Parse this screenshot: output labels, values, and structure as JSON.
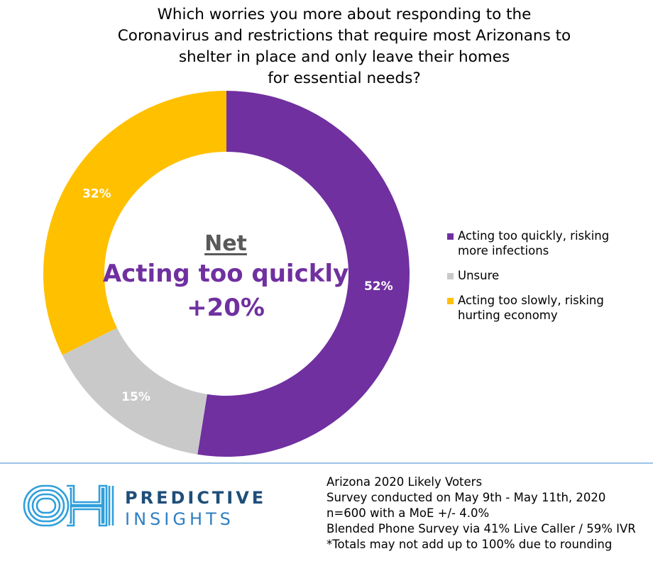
{
  "chart_data": {
    "type": "pie",
    "donut": true,
    "title_lines": [
      "Which worries you more about responding to the",
      "Coronavirus and restrictions that require most Arizonans to",
      "shelter in place and only leave their homes",
      "for essential needs?"
    ],
    "slices": [
      {
        "name": "Acting too quickly, risking more infections",
        "value": 52,
        "label": "52%",
        "color": "#7030a0"
      },
      {
        "name": "Unsure",
        "value": 15,
        "label": "15%",
        "color": "#c9c9c9"
      },
      {
        "name": "Acting too slowly, risking hurting economy",
        "value": 32,
        "label": "32%",
        "color": "#ffc000"
      }
    ],
    "legend": {
      "position": "right",
      "items": [
        {
          "line1": "Acting too quickly, risking",
          "line2": "more infections",
          "color": "#7030a0"
        },
        {
          "line1": "Unsure",
          "line2": "",
          "color": "#c9c9c9"
        },
        {
          "line1": "Acting too slowly, risking",
          "line2": "hurting economy",
          "color": "#ffc000"
        }
      ]
    },
    "center": {
      "label": "Net",
      "text": "Acting too quickly",
      "value": "+20%"
    }
  },
  "footer": {
    "brand_line1": "PREDICTIVE",
    "brand_line2": "INSIGHTS",
    "logo_icon": "oh-logo-icon",
    "notes": [
      "Arizona 2020 Likely Voters",
      "Survey conducted on May 9th - May 11th, 2020",
      "n=600 with a MoE +/- 4.0%",
      "Blended Phone Survey via 41% Live Caller / 59% IVR",
      "*Totals may not add up to 100% due to rounding"
    ]
  },
  "colors": {
    "accent_purple": "#7030a0",
    "divider": "#9dc3e6",
    "brand_dark": "#1f4e79",
    "brand_light": "#2f7fc1"
  }
}
